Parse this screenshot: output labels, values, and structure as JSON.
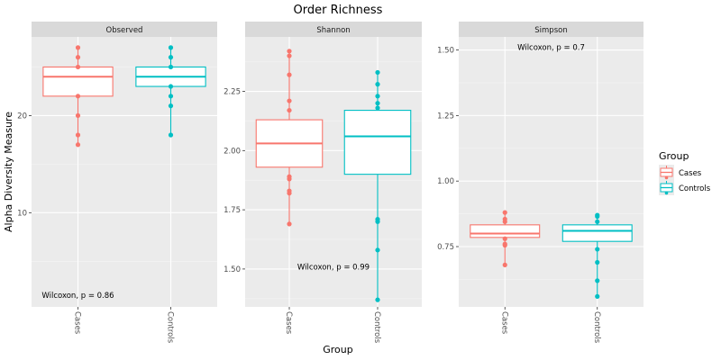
{
  "chart_data": {
    "type": "boxplot",
    "title": "Order Richness",
    "xlabel": "Group",
    "ylabel": "Alpha Diversity Measure",
    "grid": true,
    "legend": {
      "title": "Group",
      "position": "right",
      "entries": [
        {
          "label": "Cases",
          "color": "#F8766D"
        },
        {
          "label": "Controls",
          "color": "#00BFC4"
        }
      ]
    },
    "categories": [
      "Cases",
      "Controls"
    ],
    "panels": [
      {
        "name": "Observed",
        "ylim": [
          0.3,
          28.1
        ],
        "yticks": [
          10,
          20
        ],
        "ytick_labels": [
          "10",
          "20"
        ],
        "minor_ticks": [
          5,
          15,
          25
        ],
        "annotation": "Wilcoxon, p = 0.86",
        "annotation_at": {
          "group": 1,
          "y": 1.5
        },
        "boxes": [
          {
            "group": "Cases",
            "q1": 22,
            "median": 24,
            "q3": 25,
            "whisker_low": 17,
            "whisker_high": 27,
            "points": [
              27,
              26,
              25,
              22,
              20,
              18,
              17
            ]
          },
          {
            "group": "Controls",
            "q1": 23,
            "median": 24,
            "q3": 25,
            "whisker_low": 18,
            "whisker_high": 27,
            "points": [
              27,
              26,
              25,
              23,
              22,
              21,
              18
            ]
          }
        ]
      },
      {
        "name": "Shannon",
        "ylim": [
          1.34,
          2.48
        ],
        "yticks": [
          1.5,
          1.75,
          2.0,
          2.25
        ],
        "ytick_labels": [
          "1.50",
          "1.75",
          "2.00",
          "2.25"
        ],
        "minor_ticks": [
          1.375,
          1.625,
          1.875,
          2.125,
          2.375
        ],
        "annotation": "Wilcoxon, p = 0.99",
        "annotation_at": {
          "group": 1.5,
          "y": 1.51
        },
        "boxes": [
          {
            "group": "Cases",
            "q1": 1.93,
            "median": 2.03,
            "q3": 2.13,
            "whisker_low": 1.69,
            "whisker_high": 2.42,
            "points": [
              2.42,
              2.4,
              2.32,
              2.21,
              2.17,
              1.89,
              1.88,
              1.83,
              1.82,
              1.69
            ]
          },
          {
            "group": "Controls",
            "q1": 1.9,
            "median": 2.06,
            "q3": 2.17,
            "whisker_low": 1.37,
            "whisker_high": 2.33,
            "points": [
              2.33,
              2.28,
              2.23,
              2.2,
              2.18,
              1.71,
              1.7,
              1.58,
              1.37
            ]
          }
        ]
      },
      {
        "name": "Simpson",
        "ylim": [
          0.52,
          1.55
        ],
        "yticks": [
          0.75,
          1.0,
          1.25,
          1.5
        ],
        "ytick_labels": [
          "0.75",
          "1.00",
          "1.25",
          "1.50"
        ],
        "minor_ticks": [
          0.625,
          0.875,
          1.125,
          1.375
        ],
        "annotation": "Wilcoxon, p = 0.7",
        "annotation_at": {
          "group": 1.5,
          "y": 1.51
        },
        "boxes": [
          {
            "group": "Cases",
            "q1": 0.785,
            "median": 0.8,
            "q3": 0.833,
            "whisker_low": 0.68,
            "whisker_high": 0.88,
            "points": [
              0.88,
              0.855,
              0.845,
              0.78,
              0.76,
              0.755,
              0.68
            ]
          },
          {
            "group": "Controls",
            "q1": 0.77,
            "median": 0.81,
            "q3": 0.833,
            "whisker_low": 0.56,
            "whisker_high": 0.87,
            "points": [
              0.87,
              0.865,
              0.845,
              0.74,
              0.69,
              0.62,
              0.56
            ]
          }
        ]
      }
    ]
  }
}
